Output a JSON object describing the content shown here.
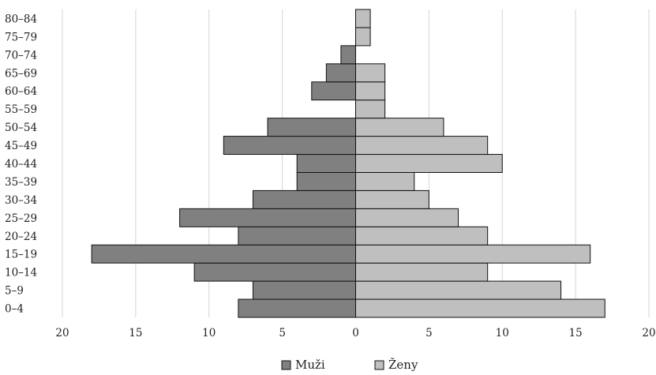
{
  "chart_data": {
    "type": "bar",
    "orientation": "horizontal",
    "categories": [
      "0–4",
      "5–9",
      "10–14",
      "15–19",
      "20–24",
      "25–29",
      "30–34",
      "35–39",
      "40–44",
      "45–49",
      "50–54",
      "55–59",
      "60–64",
      "65–69",
      "70–74",
      "75–79",
      "80–84"
    ],
    "series": [
      {
        "name": "Muži",
        "color": "#808080",
        "direction": "left",
        "values": [
          8,
          7,
          11,
          18,
          8,
          12,
          7,
          4,
          4,
          9,
          6,
          0,
          3,
          2,
          1,
          0,
          0
        ]
      },
      {
        "name": "Ženy",
        "color": "#bfbfbf",
        "direction": "right",
        "values": [
          17,
          14,
          9,
          16,
          9,
          7,
          5,
          4,
          10,
          9,
          6,
          2,
          2,
          2,
          0,
          1,
          1
        ]
      }
    ],
    "xlim": [
      -20,
      20
    ],
    "xticks": [
      -20,
      -15,
      -10,
      -5,
      0,
      5,
      10,
      15,
      20
    ],
    "xtick_labels": [
      "20",
      "15",
      "10",
      "5",
      "0",
      "5",
      "10",
      "15",
      "20"
    ],
    "title": "",
    "xlabel": "",
    "ylabel": "",
    "grid": "vertical",
    "legend": "bottom-center"
  }
}
